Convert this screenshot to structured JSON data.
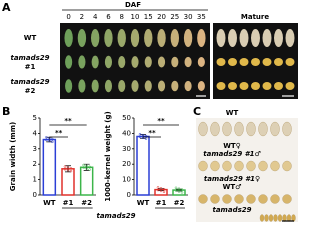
{
  "panel_labels": [
    "A",
    "B",
    "C"
  ],
  "panel_a": {
    "header": "DAF",
    "days": [
      0,
      2,
      4,
      6,
      8,
      10,
      15,
      20,
      25,
      30,
      35
    ],
    "mature": "Mature",
    "rows": [
      {
        "name": "WT"
      },
      {
        "name": "tamads29",
        "id": "#1"
      },
      {
        "name": "tamads29",
        "id": "#2"
      }
    ]
  },
  "chart_data": [
    {
      "type": "bar",
      "ylabel": "Grain width (mm)",
      "categories": [
        "WT",
        "#1",
        "#2"
      ],
      "group_label": "tamads29",
      "values": [
        3.6,
        1.7,
        1.8
      ],
      "errors": [
        0.15,
        0.2,
        0.2
      ],
      "colors": [
        "#2b3fd6",
        "#e0312b",
        "#3cb54a"
      ],
      "ylim": [
        0,
        5
      ],
      "yticks": [
        0,
        1,
        2,
        3,
        4,
        5
      ],
      "annotations": [
        "**",
        "**"
      ]
    },
    {
      "type": "bar",
      "ylabel": "1000-kernel weight (g)",
      "categories": [
        "WT",
        "#1",
        "#2"
      ],
      "group_label": "tamads29",
      "values": [
        38,
        3.5,
        3.2
      ],
      "errors": [
        1.2,
        0.6,
        0.6
      ],
      "colors": [
        "#2b3fd6",
        "#e0312b",
        "#3cb54a"
      ],
      "ylim": [
        0,
        50
      ],
      "yticks": [
        0,
        10,
        20,
        30,
        40,
        50
      ],
      "annotations": [
        "**",
        "**"
      ]
    }
  ],
  "panel_c": {
    "rows": [
      {
        "lines": [
          "WT"
        ]
      },
      {
        "lines": [
          "WT♀",
          "tamads29 #1♂"
        ]
      },
      {
        "lines": [
          "tamads29 #1♀",
          "WT♂"
        ]
      },
      {
        "lines": [
          "tamads29"
        ]
      }
    ]
  }
}
